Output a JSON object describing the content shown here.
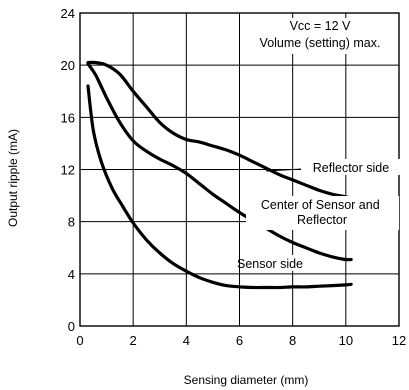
{
  "chart_data": {
    "type": "line",
    "xlabel": "Sensing diameter (mm)",
    "ylabel": "Output ripple (mA)",
    "xlim": [
      0,
      12
    ],
    "ylim": [
      0,
      24
    ],
    "x_ticks": [
      0,
      2,
      4,
      6,
      8,
      10,
      12
    ],
    "y_ticks": [
      0,
      4,
      8,
      12,
      16,
      20,
      24
    ],
    "grid": true,
    "annotations": [
      "Vcc = 12 V",
      "Volume (setting) max."
    ],
    "series": [
      {
        "name": "Reflector side",
        "x": [
          0.3,
          0.6,
          1.0,
          1.5,
          2.0,
          2.5,
          3.0,
          3.5,
          4.0,
          4.5,
          5.0,
          5.5,
          6.0,
          6.5,
          7.0,
          7.5,
          8.0,
          8.5,
          9.0,
          9.5,
          10.0,
          10.2
        ],
        "y": [
          20.2,
          20.2,
          20.0,
          19.3,
          18.0,
          16.8,
          15.6,
          14.8,
          14.3,
          14.1,
          13.8,
          13.5,
          13.1,
          12.6,
          12.1,
          11.6,
          11.2,
          10.8,
          10.4,
          10.1,
          9.9,
          9.8
        ]
      },
      {
        "name": "Center of Sensor and Reflector",
        "x": [
          0.3,
          0.6,
          1.0,
          1.5,
          2.0,
          2.5,
          3.0,
          3.5,
          4.0,
          4.5,
          5.0,
          5.5,
          6.0,
          6.5,
          7.0,
          7.5,
          8.0,
          8.5,
          9.0,
          9.5,
          10.0,
          10.2
        ],
        "y": [
          20.1,
          19.2,
          17.5,
          15.6,
          14.2,
          13.4,
          12.8,
          12.3,
          11.7,
          10.9,
          10.1,
          9.4,
          8.7,
          8.1,
          7.5,
          6.9,
          6.4,
          6.0,
          5.6,
          5.3,
          5.1,
          5.1
        ]
      },
      {
        "name": "Sensor side",
        "x": [
          0.3,
          0.5,
          0.8,
          1.2,
          1.6,
          2.0,
          2.5,
          3.0,
          3.5,
          4.0,
          4.5,
          5.0,
          5.5,
          6.0,
          6.5,
          7.0,
          7.5,
          8.0,
          8.5,
          9.0,
          9.5,
          10.0,
          10.2
        ],
        "y": [
          18.4,
          15.0,
          12.6,
          10.6,
          9.2,
          7.9,
          6.6,
          5.6,
          4.8,
          4.2,
          3.7,
          3.35,
          3.1,
          3.0,
          2.95,
          2.95,
          2.95,
          3.0,
          3.0,
          3.05,
          3.1,
          3.15,
          3.2
        ]
      }
    ]
  }
}
